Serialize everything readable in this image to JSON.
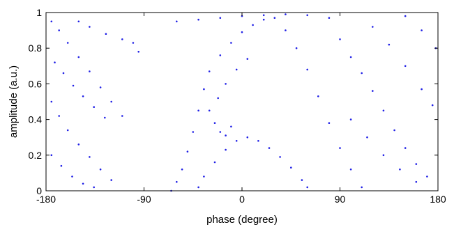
{
  "chart_data": {
    "type": "scatter",
    "title": "",
    "xlabel": "phase (degree)",
    "ylabel": "amplitude (a.u.)",
    "xlim": [
      -180,
      180
    ],
    "ylim": [
      0,
      1
    ],
    "xticks": [
      -180,
      -90,
      0,
      90,
      180
    ],
    "xtick_labels": [
      "-180",
      "-90",
      "0",
      "90",
      "180"
    ],
    "yticks": [
      0,
      0.2,
      0.4,
      0.6,
      0.8,
      1
    ],
    "ytick_labels": [
      "0",
      "0.2",
      "0.4",
      "0.6",
      "0.8",
      "1"
    ],
    "grid": false,
    "legend": "none",
    "marker_color": "#1f1fe6",
    "series": [
      {
        "points": [
          [
            -175,
            0.95
          ],
          [
            -168,
            0.9
          ],
          [
            -160,
            0.83
          ],
          [
            -150,
            0.75
          ],
          [
            -140,
            0.67
          ],
          [
            -130,
            0.58
          ],
          [
            -120,
            0.5
          ],
          [
            -110,
            0.42
          ],
          [
            -175,
            0.5
          ],
          [
            -168,
            0.42
          ],
          [
            -160,
            0.34
          ],
          [
            -150,
            0.26
          ],
          [
            -140,
            0.19
          ],
          [
            -130,
            0.12
          ],
          [
            -120,
            0.06
          ],
          [
            -175,
            0.2
          ],
          [
            -166,
            0.14
          ],
          [
            -156,
            0.08
          ],
          [
            -146,
            0.04
          ],
          [
            -136,
            0.02
          ],
          [
            -172,
            0.72
          ],
          [
            -164,
            0.66
          ],
          [
            -155,
            0.59
          ],
          [
            -146,
            0.53
          ],
          [
            -136,
            0.47
          ],
          [
            -126,
            0.41
          ],
          [
            -150,
            0.95
          ],
          [
            -140,
            0.92
          ],
          [
            -125,
            0.88
          ],
          [
            -110,
            0.85
          ],
          [
            -100,
            0.83
          ],
          [
            -95,
            0.78
          ],
          [
            -65,
            0.0
          ],
          [
            -60,
            0.05
          ],
          [
            -55,
            0.12
          ],
          [
            -50,
            0.22
          ],
          [
            -45,
            0.33
          ],
          [
            -40,
            0.45
          ],
          [
            -35,
            0.57
          ],
          [
            -30,
            0.67
          ],
          [
            -20,
            0.76
          ],
          [
            -10,
            0.83
          ],
          [
            0,
            0.89
          ],
          [
            10,
            0.93
          ],
          [
            20,
            0.96
          ],
          [
            -30,
            0.45
          ],
          [
            -25,
            0.38
          ],
          [
            -20,
            0.33
          ],
          [
            -15,
            0.31
          ],
          [
            -10,
            0.36
          ],
          [
            -22,
            0.52
          ],
          [
            -15,
            0.6
          ],
          [
            -5,
            0.68
          ],
          [
            5,
            0.74
          ],
          [
            -40,
            0.02
          ],
          [
            -35,
            0.08
          ],
          [
            -25,
            0.16
          ],
          [
            -15,
            0.23
          ],
          [
            -5,
            0.28
          ],
          [
            5,
            0.3
          ],
          [
            15,
            0.28
          ],
          [
            25,
            0.24
          ],
          [
            35,
            0.19
          ],
          [
            45,
            0.13
          ],
          [
            55,
            0.06
          ],
          [
            60,
            0.02
          ],
          [
            30,
            0.97
          ],
          [
            40,
            0.9
          ],
          [
            50,
            0.8
          ],
          [
            60,
            0.68
          ],
          [
            70,
            0.53
          ],
          [
            80,
            0.38
          ],
          [
            90,
            0.24
          ],
          [
            100,
            0.12
          ],
          [
            110,
            0.02
          ],
          [
            -60,
            0.95
          ],
          [
            -40,
            0.96
          ],
          [
            -20,
            0.97
          ],
          [
            0,
            0.98
          ],
          [
            20,
            0.985
          ],
          [
            40,
            0.99
          ],
          [
            60,
            0.985
          ],
          [
            80,
            0.97
          ],
          [
            90,
            0.85
          ],
          [
            100,
            0.75
          ],
          [
            110,
            0.66
          ],
          [
            120,
            0.56
          ],
          [
            130,
            0.45
          ],
          [
            140,
            0.34
          ],
          [
            150,
            0.24
          ],
          [
            160,
            0.15
          ],
          [
            170,
            0.08
          ],
          [
            120,
            0.92
          ],
          [
            135,
            0.82
          ],
          [
            150,
            0.7
          ],
          [
            165,
            0.57
          ],
          [
            175,
            0.48
          ],
          [
            100,
            0.4
          ],
          [
            115,
            0.3
          ],
          [
            130,
            0.2
          ],
          [
            145,
            0.12
          ],
          [
            160,
            0.05
          ],
          [
            150,
            0.98
          ],
          [
            165,
            0.9
          ],
          [
            178,
            0.8
          ]
        ]
      }
    ]
  }
}
